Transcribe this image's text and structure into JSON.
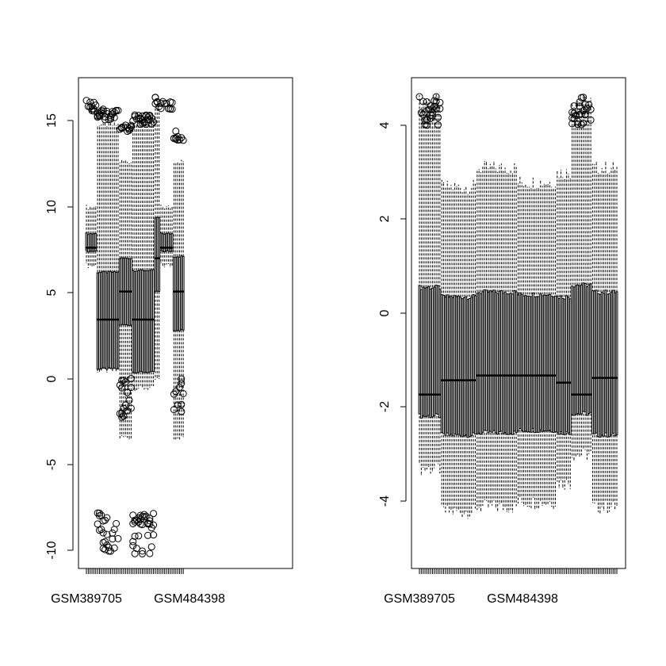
{
  "chart_data": [
    {
      "type": "boxplot",
      "n_boxes": 107,
      "ylim": [
        -10.8,
        17.2
      ],
      "yticks": [
        -10,
        -5,
        0,
        5,
        10,
        15
      ],
      "ytick_labels": [
        "-10",
        "-5",
        "0",
        "5",
        "10",
        "15"
      ],
      "xtick_labels": [
        "GSM389705",
        "GSM484398"
      ],
      "xtick_label_box_index": [
        4,
        30
      ],
      "groups": [
        {
          "start": 0,
          "end": 5,
          "min": 6.5,
          "q1": 7.3,
          "median": 7.5,
          "q3": 8.3,
          "max": 9.8,
          "outlier_lo": null,
          "outlier_hi": 15.9
        },
        {
          "start": 6,
          "end": 17,
          "min": 0.5,
          "q1": 0.6,
          "median": 3.4,
          "q3": 6.1,
          "max": 14.5,
          "outlier_lo": -10,
          "outlier_hi": 15.4
        },
        {
          "start": 18,
          "end": 24,
          "min": -3.3,
          "q1": 3.1,
          "median": 5.0,
          "q3": 6.9,
          "max": 12.4,
          "outlier_lo": -2.3,
          "outlier_hi": 14.5
        },
        {
          "start": 25,
          "end": 36,
          "min": -0.5,
          "q1": 0.4,
          "median": 3.4,
          "q3": 6.2,
          "max": 14.6,
          "outlier_lo": -10,
          "outlier_hi": 15.1
        },
        {
          "start": 37,
          "end": 39,
          "min": 0.0,
          "q1": 5.0,
          "median": 6.9,
          "q3": 9.2,
          "max": 15.5,
          "outlier_lo": null,
          "outlier_hi": 16.1
        },
        {
          "start": 40,
          "end": 46,
          "min": 6.5,
          "q1": 7.3,
          "median": 7.5,
          "q3": 8.3,
          "max": 9.8,
          "outlier_lo": null,
          "outlier_hi": 15.9
        },
        {
          "start": 47,
          "end": 52,
          "min": -3.3,
          "q1": 2.8,
          "median": 5.0,
          "q3": 7.0,
          "max": 12.4,
          "outlier_lo": -2.3,
          "outlier_hi": 14.2
        }
      ]
    },
    {
      "type": "boxplot",
      "n_boxes": 107,
      "ylim": [
        -5.4,
        4.9
      ],
      "yticks": [
        -4,
        -2,
        0,
        2,
        4
      ],
      "ytick_labels": [
        "-4",
        "-2",
        "0",
        "2",
        "4"
      ],
      "xtick_labels": [
        "GSM389705",
        "GSM484398"
      ],
      "xtick_label_box_index": [
        4,
        30
      ],
      "groups": [
        {
          "start": 0,
          "end": 11,
          "min": -3.3,
          "q1": -2.2,
          "median": -1.75,
          "q3": 0.5,
          "max": 4.4,
          "outlier_hi": 4.5
        },
        {
          "start": 12,
          "end": 30,
          "min": -4.2,
          "q1": -2.6,
          "median": -1.45,
          "q3": 0.3,
          "max": 2.6
        },
        {
          "start": 31,
          "end": 52,
          "min": -4.1,
          "q1": -2.55,
          "median": -1.35,
          "q3": 0.4,
          "max": 3.0
        },
        {
          "start": 53,
          "end": 73,
          "min": -4.0,
          "q1": -2.5,
          "median": -1.35,
          "q3": 0.35,
          "max": 2.7
        },
        {
          "start": 74,
          "end": 81,
          "min": -3.6,
          "q1": -2.55,
          "median": -1.5,
          "q3": 0.3,
          "max": 2.9
        },
        {
          "start": 82,
          "end": 92,
          "min": -3.0,
          "q1": -2.15,
          "median": -1.75,
          "q3": 0.55,
          "max": 4.4,
          "outlier_hi": 4.5
        },
        {
          "start": 93,
          "end": 106,
          "min": -4.1,
          "q1": -2.6,
          "median": -1.4,
          "q3": 0.4,
          "max": 3.0
        }
      ]
    }
  ]
}
